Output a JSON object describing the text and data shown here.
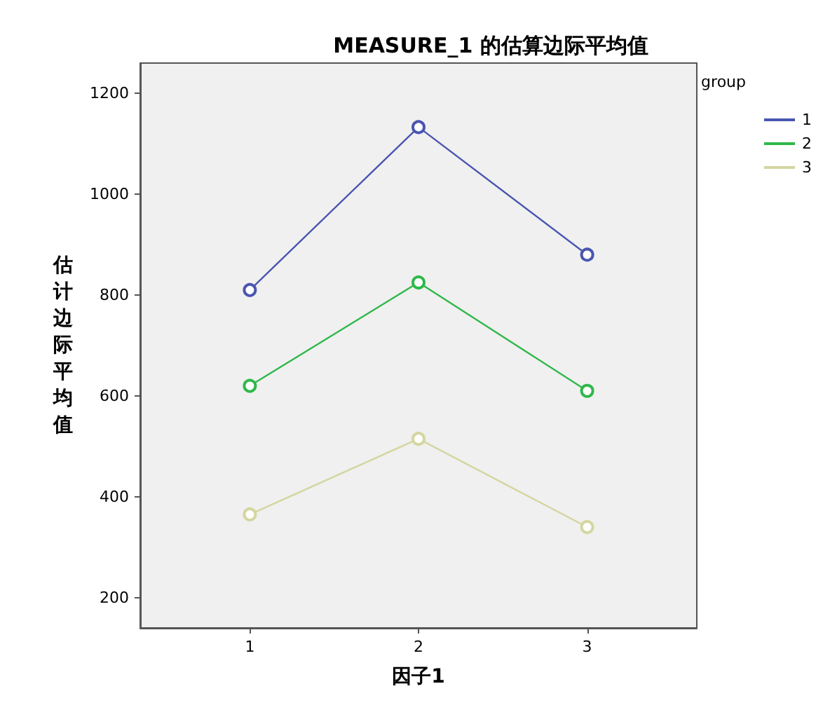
{
  "chart_data": {
    "type": "line",
    "title": "MEASURE_1 的估算边际平均值",
    "xlabel": "因子1",
    "ylabel": "估计边际平均值",
    "legend_title": "group",
    "x": [
      1,
      2,
      3
    ],
    "xlim": [
      0.35,
      3.65
    ],
    "xticks": [
      1,
      2,
      3
    ],
    "ylim": [
      140,
      1260
    ],
    "yticks": [
      200,
      400,
      600,
      800,
      1000,
      1200
    ],
    "series": [
      {
        "name": "1",
        "color": "#4a55b0",
        "values": [
          810,
          1133,
          880
        ]
      },
      {
        "name": "2",
        "color": "#2fb84a",
        "values": [
          620,
          825,
          610
        ]
      },
      {
        "name": "3",
        "color": "#d4d6a0",
        "values": [
          365,
          515,
          340
        ]
      }
    ],
    "marker": "circle",
    "grid": false,
    "legend": "top right"
  }
}
